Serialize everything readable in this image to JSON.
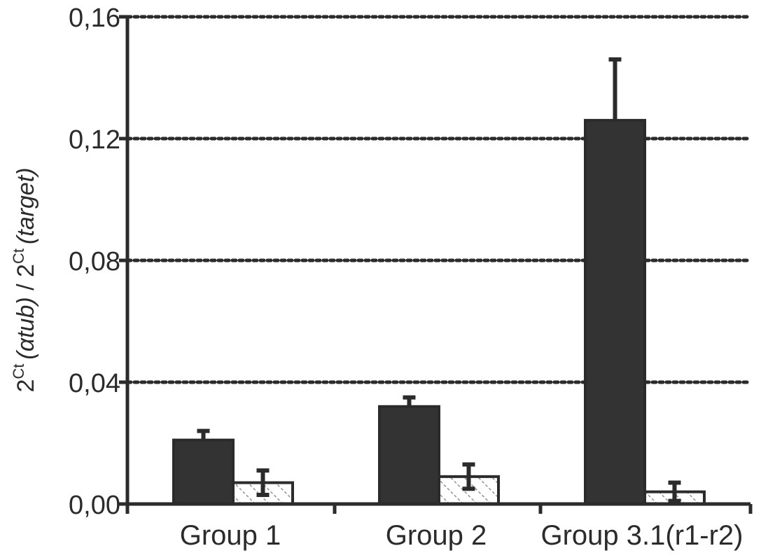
{
  "chart_data": {
    "type": "bar",
    "categories": [
      "Group 1",
      "Group 2",
      "Group 3.1(r1-r2)"
    ],
    "series": [
      {
        "values": [
          0.021,
          0.032,
          0.126
        ],
        "errors": [
          0.003,
          0.003,
          0.02
        ],
        "fill": "#333333",
        "pattern": "solid"
      },
      {
        "values": [
          0.007,
          0.009,
          0.004
        ],
        "errors": [
          0.004,
          0.004,
          0.003
        ],
        "fill": "#ffffff",
        "pattern": "hatched"
      }
    ],
    "ylim": [
      0,
      0.16
    ],
    "yticks": [
      0.0,
      0.04,
      0.08,
      0.12,
      0.16
    ],
    "ytick_labels": [
      "0,00",
      "0,04",
      "0,08",
      "0,12",
      "0,16"
    ],
    "ylabel": {
      "base1": "2",
      "sup1": "Ct",
      "paren1": "(αtub)",
      "slash": " / ",
      "base2": "2",
      "sup2": "Ct",
      "paren2": "(target)"
    },
    "grid": "horizontal dashed",
    "colors": {
      "axis": "#2b2b2b",
      "bar_dark": "#333333",
      "bar_light": "#ffffff",
      "hatch": "#a08c8c"
    }
  }
}
